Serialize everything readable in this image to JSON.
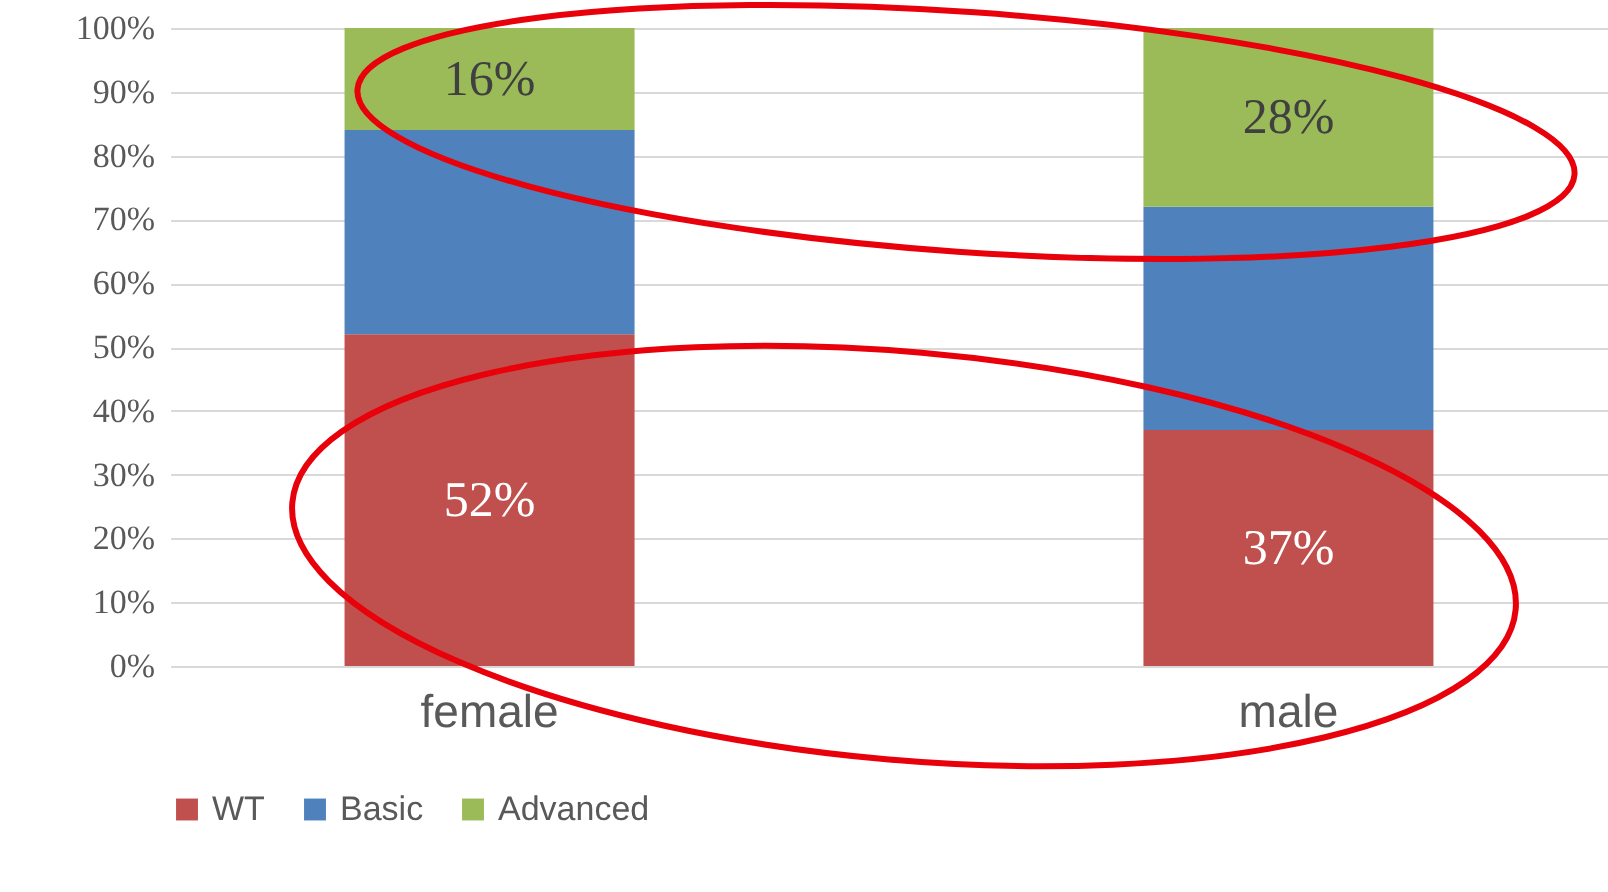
{
  "chart_data": {
    "type": "bar",
    "stacked": true,
    "categories": [
      "female",
      "male"
    ],
    "series": [
      {
        "name": "WT",
        "color": "#c0504d",
        "values": [
          52,
          37
        ],
        "value_labels": [
          "52%",
          "37%"
        ]
      },
      {
        "name": "Basic",
        "color": "#4f81bd",
        "values": [
          32,
          35
        ]
      },
      {
        "name": "Advanced",
        "color": "#9bbb59",
        "values": [
          16,
          28
        ],
        "value_labels": [
          "16%",
          "28%"
        ]
      }
    ],
    "ylim": [
      0,
      100
    ],
    "yticks": [
      {
        "value": 0,
        "label": "0%"
      },
      {
        "value": 10,
        "label": "10%"
      },
      {
        "value": 20,
        "label": "20%"
      },
      {
        "value": 30,
        "label": "30%"
      },
      {
        "value": 40,
        "label": "40%"
      },
      {
        "value": 50,
        "label": "50%"
      },
      {
        "value": 60,
        "label": "60%"
      },
      {
        "value": 70,
        "label": "70%"
      },
      {
        "value": 80,
        "label": "80%"
      },
      {
        "value": 90,
        "label": "90%"
      },
      {
        "value": 100,
        "label": "100%"
      }
    ],
    "grid": "y",
    "legend": "bottom"
  }
}
